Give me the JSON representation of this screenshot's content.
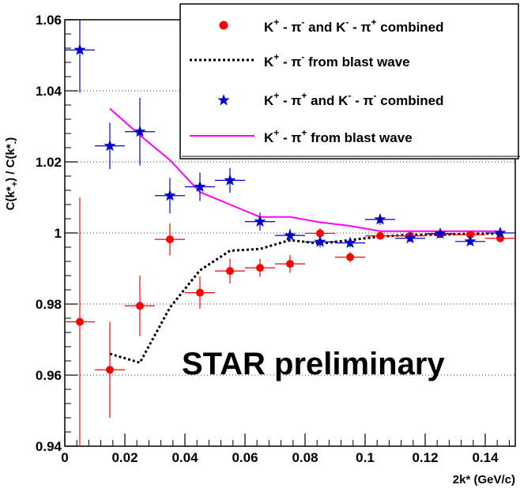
{
  "chart_data": {
    "type": "scatter",
    "annotation": "STAR preliminary",
    "xlabel": "2k* (GeV/c)",
    "ylabel": "C(k*+) / C(k*-)",
    "xlim": [
      0,
      0.15
    ],
    "ylim": [
      0.94,
      1.06
    ],
    "x_ticks": [
      "0",
      "0.02",
      "0.04",
      "0.06",
      "0.08",
      "0.1",
      "0.12",
      "0.14"
    ],
    "y_ticks": [
      "0.94",
      "0.96",
      "0.98",
      "1",
      "1.02",
      "1.04",
      "1.06"
    ],
    "grid": "horizontal dotted",
    "legend_position": "top-right",
    "series": [
      {
        "name": "K+ - π- and K- - π+ combined",
        "marker": "circle",
        "color": "#ff0000",
        "x": [
          0.005,
          0.015,
          0.025,
          0.035,
          0.045,
          0.055,
          0.065,
          0.075,
          0.085,
          0.095,
          0.105,
          0.115,
          0.125,
          0.135,
          0.145
        ],
        "y": [
          0.975,
          0.9615,
          0.9795,
          0.9982,
          0.9832,
          0.9893,
          0.9902,
          0.9913,
          0.9999,
          0.9932,
          0.9992,
          0.9992,
          0.9997,
          0.9995,
          0.9985
        ],
        "yerr": [
          0.035,
          0.0135,
          0.0085,
          0.0045,
          0.0045,
          0.0035,
          0.0025,
          0.0025,
          0.0015,
          0.0015,
          0.001,
          0.001,
          0.0012,
          0.001,
          0.001
        ]
      },
      {
        "name": "K+ - π- from blast wave",
        "line": "dotted",
        "color": "#000000",
        "x": [
          0.015,
          0.025,
          0.035,
          0.045,
          0.055,
          0.065,
          0.075,
          0.085,
          0.095,
          0.105,
          0.115,
          0.125,
          0.135,
          0.145
        ],
        "y": [
          0.966,
          0.9635,
          0.979,
          0.9895,
          0.995,
          0.9955,
          0.998,
          0.997,
          0.998,
          0.999,
          0.9995,
          0.9995,
          0.9998,
          0.9998
        ]
      },
      {
        "name": "K+ - π+ and K- - π- combined",
        "marker": "star",
        "color": "#0000cc",
        "x": [
          0.005,
          0.015,
          0.025,
          0.035,
          0.045,
          0.055,
          0.065,
          0.075,
          0.085,
          0.095,
          0.105,
          0.115,
          0.125,
          0.135,
          0.145
        ],
        "y": [
          1.0515,
          1.0245,
          1.0285,
          1.0105,
          1.013,
          1.0148,
          1.0032,
          0.9993,
          0.9975,
          0.9972,
          1.0038,
          0.9985,
          0.9998,
          0.9976,
          1.0
        ],
        "yerr": [
          0.012,
          0.0065,
          0.0095,
          0.005,
          0.004,
          0.0035,
          0.0025,
          0.0018,
          0.0015,
          0.0012,
          0.0015,
          0.001,
          0.001,
          0.001,
          0.001
        ]
      },
      {
        "name": "K+ - π+ from blast wave",
        "line": "solid",
        "color": "#ff00ff",
        "x": [
          0.015,
          0.025,
          0.035,
          0.045,
          0.055,
          0.065,
          0.075,
          0.085,
          0.095,
          0.105,
          0.115,
          0.125,
          0.135,
          0.145
        ],
        "y": [
          1.035,
          1.0275,
          1.0205,
          1.0115,
          1.008,
          1.0045,
          1.0045,
          1.003,
          1.002,
          1.0005,
          1.0005,
          1.0005,
          1.0005,
          1.0005
        ]
      }
    ]
  },
  "legend": {
    "entry1": {
      "a": "K",
      "a_sup": "+",
      "b": " - π",
      "b_sup": "-",
      "c": "  and K",
      "c_sup": "-",
      "d": " - π",
      "d_sup": "+",
      "e": "  combined"
    },
    "entry2": {
      "a": "K",
      "a_sup": "+",
      "b": " - π",
      "b_sup": "-",
      "c": "  from blast wave"
    },
    "entry3": {
      "a": "K",
      "a_sup": "+",
      "b": " - π",
      "b_sup": "+",
      "c": "  and K",
      "c_sup": "-",
      "d": " - π",
      "d_sup": "-",
      "e": "  combined"
    },
    "entry4": {
      "a": "K",
      "a_sup": "+",
      "b": " - π",
      "b_sup": "+",
      "c": "  from blast wave"
    }
  },
  "ylabel_parts": {
    "main1": "C(k*",
    "sub1": "+",
    "main2": ") / C(k*",
    "sub2": "-",
    "main3": ")"
  }
}
